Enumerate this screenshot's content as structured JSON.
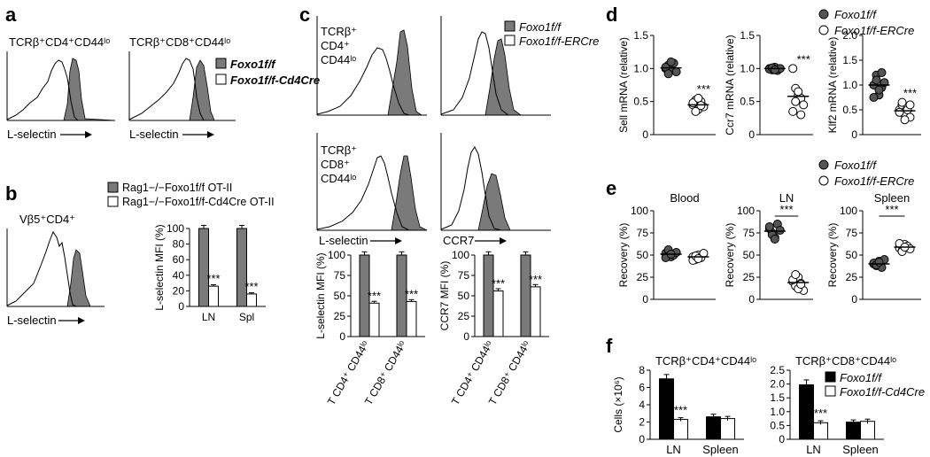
{
  "figure": {
    "panels": {
      "a": "a",
      "b": "b",
      "c": "c",
      "d": "d",
      "e": "e",
      "f": "f"
    },
    "colors": {
      "filled": "#7a7a7a",
      "open": "#ffffff",
      "dot": "#555555",
      "bar_black": "#000000"
    }
  },
  "a": {
    "gate_left": "TCRβ⁺CD4⁺CD44ˡᵒ",
    "gate_right": "TCRβ⁺CD8⁺CD44ˡᵒ",
    "xlabel": "L-selectin",
    "legend": [
      "Foxo1f/f",
      "Foxo1f/f-Cd4Cre"
    ]
  },
  "b": {
    "gate": "Vβ5⁺CD4⁺",
    "xlabel": "L-selectin",
    "legend": [
      "Rag1−/−Foxo1f/f OT-II",
      "Rag1−/−Foxo1f/f-Cd4Cre OT-II"
    ],
    "chart_data": {
      "type": "bar",
      "ylabel": "L-selectin MFI (%)",
      "ylim": [
        0,
        100
      ],
      "yticks": [
        0,
        20,
        40,
        60,
        80,
        100
      ],
      "categories": [
        "LN",
        "Spl"
      ],
      "series": [
        {
          "name": "Rag1−/−Foxo1f/f OT-II",
          "values": [
            100,
            100
          ]
        },
        {
          "name": "Rag1−/−Foxo1f/f-Cd4Cre OT-II",
          "values": [
            26,
            16
          ]
        }
      ],
      "annotations": [
        "***",
        "***"
      ]
    }
  },
  "c": {
    "gate_cd4": [
      "TCRβ⁺",
      "CD4⁺",
      "CD44ˡᵒ"
    ],
    "gate_cd8": [
      "TCRβ⁺",
      "CD8⁺",
      "CD44ˡᵒ"
    ],
    "xlabel_left": "L-selectin",
    "xlabel_right": "CCR7",
    "legend": [
      "Foxo1f/f",
      "Foxo1f/f-ERCre"
    ],
    "chart_data": [
      {
        "type": "bar",
        "ylabel": "L-selectin MFI (%)",
        "ylim": [
          0,
          100
        ],
        "yticks": [
          0,
          25,
          50,
          75,
          100
        ],
        "categories": [
          "T CD4⁺ CD44ˡᵒ",
          "T CD8⁺ CD44ˡᵒ"
        ],
        "series": [
          {
            "name": "Foxo1f/f",
            "values": [
              100,
              100
            ]
          },
          {
            "name": "Foxo1f/f-ERCre",
            "values": [
              41,
              43
            ]
          }
        ],
        "annotations": [
          "***",
          "***"
        ]
      },
      {
        "type": "bar",
        "ylabel": "CCR7 MFI (%)",
        "ylim": [
          0,
          100
        ],
        "yticks": [
          0,
          25,
          50,
          75,
          100
        ],
        "categories": [
          "T CD4⁺ CD44ˡᵒ",
          "T CD8⁺ CD44ˡᵒ"
        ],
        "series": [
          {
            "name": "Foxo1f/f",
            "values": [
              100,
              100
            ]
          },
          {
            "name": "Foxo1f/f-ERCre",
            "values": [
              56,
              61
            ]
          }
        ],
        "annotations": [
          "***",
          "***"
        ]
      }
    ]
  },
  "d": {
    "legend": [
      "Foxo1f/f",
      "Foxo1f/f-ERCre"
    ],
    "chart_data": [
      {
        "type": "scatter",
        "ylabel": "Sell mRNA (relative)",
        "ylim": [
          0,
          1.5
        ],
        "yticks": [
          "0",
          "0.5",
          "1.0",
          "1.5"
        ],
        "groups": [
          {
            "name": "Foxo1f/f",
            "values": [
              1.0,
              1.05,
              0.98,
              1.08,
              0.95,
              1.02,
              0.92,
              1.1
            ],
            "mean": 1.01
          },
          {
            "name": "Foxo1f/f-ERCre",
            "values": [
              0.45,
              0.52,
              0.38,
              0.5,
              0.42,
              0.48,
              0.35,
              0.55,
              0.44
            ],
            "mean": 0.45
          }
        ],
        "annotation": "***"
      },
      {
        "type": "scatter",
        "ylabel": "Ccr7 mRNA (relative)",
        "ylim": [
          0,
          1.5
        ],
        "yticks": [
          "0",
          "0.5",
          "1.0",
          "1.5"
        ],
        "groups": [
          {
            "name": "Foxo1f/f",
            "values": [
              1.0,
              0.98,
              1.02,
              0.97,
              1.0,
              0.99,
              1.01,
              0.98
            ],
            "mean": 1.0
          },
          {
            "name": "Foxo1f/f-ERCre",
            "values": [
              1.0,
              0.7,
              0.6,
              0.55,
              0.45,
              0.35,
              0.5,
              0.65,
              0.3
            ],
            "mean": 0.58
          }
        ],
        "annotation": "***"
      },
      {
        "type": "scatter",
        "ylabel": "Klf2 mRNA (relative)",
        "ylim": [
          0,
          2.0
        ],
        "yticks": [
          "0",
          "0.5",
          "1.0",
          "1.5",
          "2.0"
        ],
        "groups": [
          {
            "name": "Foxo1f/f",
            "values": [
              1.0,
              1.2,
              0.8,
              0.95,
              1.05,
              0.75,
              1.1,
              0.9,
              1.25
            ],
            "mean": 1.0
          },
          {
            "name": "Foxo1f/f-ERCre",
            "values": [
              0.5,
              0.6,
              0.4,
              0.55,
              0.35,
              0.45,
              0.65,
              0.3,
              0.5,
              0.6
            ],
            "mean": 0.48
          }
        ],
        "annotation": "***"
      }
    ]
  },
  "e": {
    "legend": [
      "Foxo1f/f",
      "Foxo1f/f-ERCre"
    ],
    "chart_data": [
      {
        "type": "scatter",
        "title": "Blood",
        "ylabel": "Recovery (%)",
        "ylim": [
          0,
          100
        ],
        "yticks": [
          "0",
          "25",
          "50",
          "75",
          "100"
        ],
        "groups": [
          {
            "name": "Foxo1f/f",
            "values": [
              52,
              55,
              48,
              50,
              53,
              47,
              56,
              51
            ],
            "mean": 51
          },
          {
            "name": "Foxo1f/f-ERCre",
            "values": [
              48,
              45,
              50,
              47,
              52,
              44,
              49,
              46
            ],
            "mean": 48
          }
        ],
        "annotation": ""
      },
      {
        "type": "scatter",
        "title": "LN",
        "ylabel": "Recovery (%)",
        "ylim": [
          0,
          100
        ],
        "yticks": [
          "0",
          "25",
          "50",
          "75",
          "100"
        ],
        "groups": [
          {
            "name": "Foxo1f/f",
            "values": [
              80,
              75,
              70,
              85,
              78,
              82,
              73,
              68
            ],
            "mean": 77
          },
          {
            "name": "Foxo1f/f-ERCre",
            "values": [
              20,
              15,
              25,
              18,
              10,
              22,
              28,
              12,
              17
            ],
            "mean": 19
          }
        ],
        "annotation": "***"
      },
      {
        "type": "scatter",
        "title": "Spleen",
        "ylabel": "Recovery (%)",
        "ylim": [
          0,
          100
        ],
        "yticks": [
          "0",
          "25",
          "50",
          "75",
          "100"
        ],
        "groups": [
          {
            "name": "Foxo1f/f",
            "values": [
              40,
              38,
              43,
              36,
              45,
              41,
              39,
              42
            ],
            "mean": 40
          },
          {
            "name": "Foxo1f/f-ERCre",
            "values": [
              58,
              55,
              62,
              60,
              57,
              63,
              54,
              59
            ],
            "mean": 59
          }
        ],
        "annotation": "***"
      }
    ]
  },
  "f": {
    "legend": [
      "Foxo1f/f",
      "Foxo1f/f-Cd4Cre"
    ],
    "chart_data": [
      {
        "type": "bar",
        "title": "TCRβ⁺CD4⁺CD44ˡᵒ",
        "ylabel": "Cells (×10⁶)",
        "ylim": [
          0,
          8
        ],
        "yticks": [
          "0",
          "2",
          "4",
          "6",
          "8"
        ],
        "categories": [
          "LN",
          "Spleen"
        ],
        "series": [
          {
            "name": "Foxo1f/f",
            "values": [
              7.0,
              2.6
            ],
            "errors": [
              0.5,
              0.3
            ]
          },
          {
            "name": "Foxo1f/f-Cd4Cre",
            "values": [
              2.3,
              2.4
            ],
            "errors": [
              0.2,
              0.25
            ]
          }
        ],
        "annotations": [
          "***",
          ""
        ]
      },
      {
        "type": "bar",
        "title": "TCRβ⁺CD8⁺CD44ˡᵒ",
        "ylabel": "",
        "ylim": [
          0,
          2.5
        ],
        "yticks": [
          "0",
          "0.5",
          "1.0",
          "1.5",
          "2.0",
          "2.5"
        ],
        "categories": [
          "LN",
          "Spleen"
        ],
        "series": [
          {
            "name": "Foxo1f/f",
            "values": [
              1.97,
              0.62
            ],
            "errors": [
              0.18,
              0.08
            ]
          },
          {
            "name": "Foxo1f/f-Cd4Cre",
            "values": [
              0.6,
              0.65
            ],
            "errors": [
              0.07,
              0.08
            ]
          }
        ],
        "annotations": [
          "***",
          ""
        ]
      }
    ]
  }
}
